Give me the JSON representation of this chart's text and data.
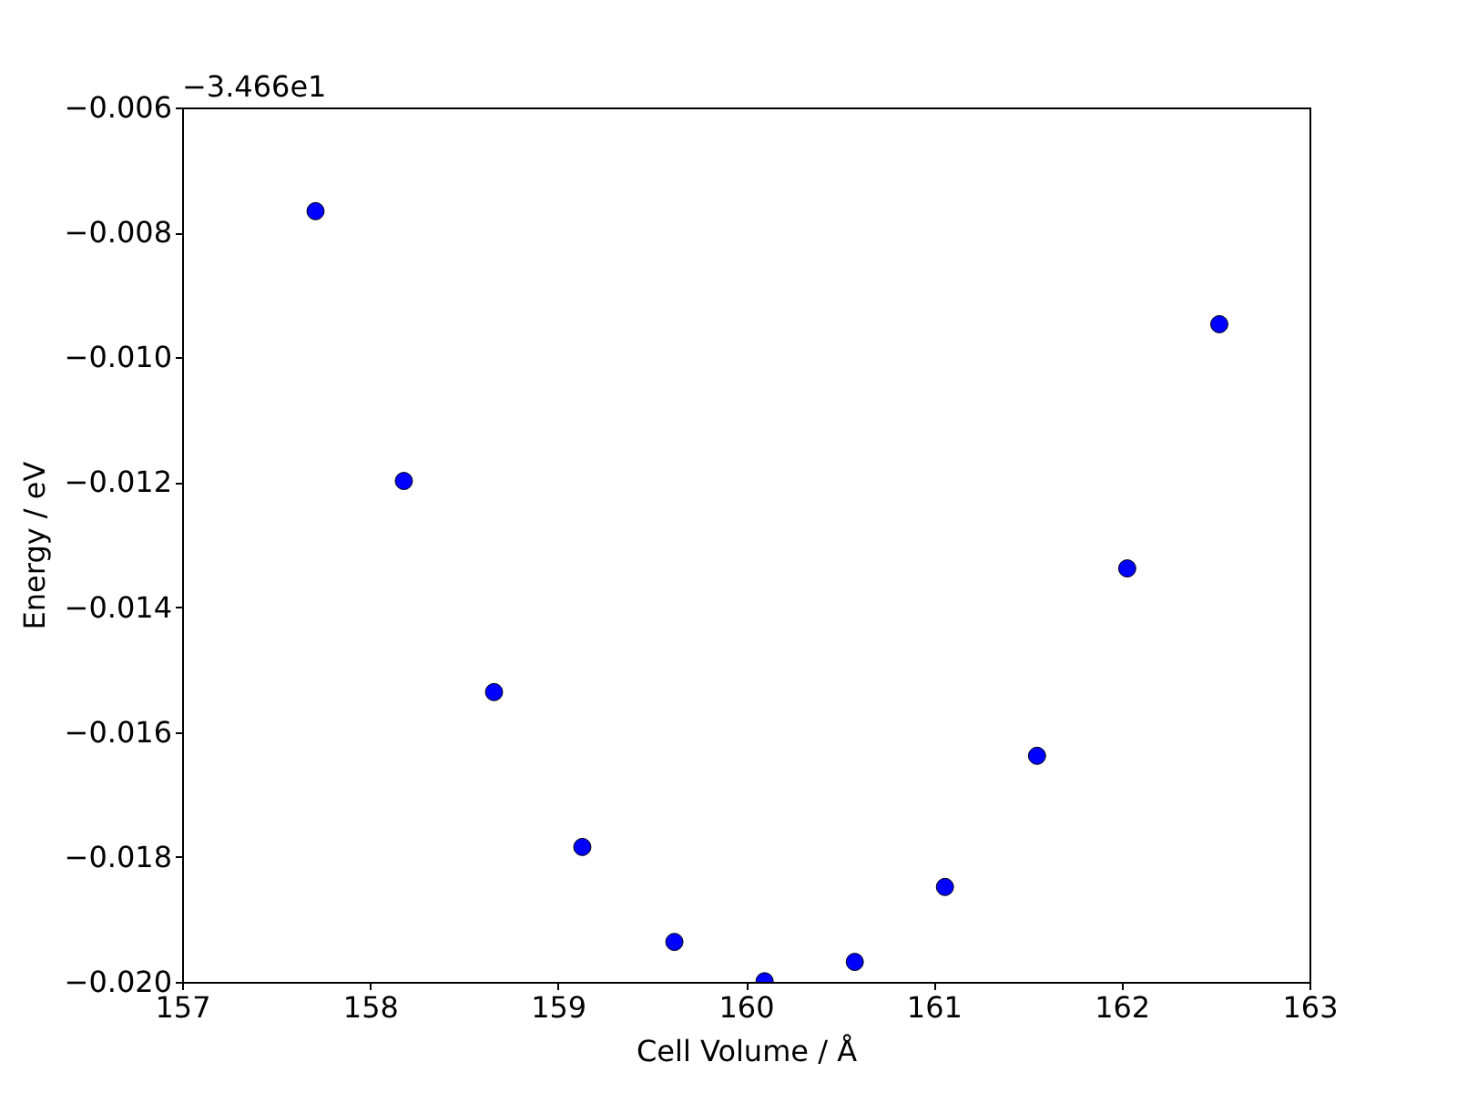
{
  "chart_data": {
    "type": "scatter",
    "xlabel": "Cell Volume / Å",
    "ylabel": "Energy / eV",
    "annotations": [
      "−3.466e1"
    ],
    "x": [
      157.71,
      158.18,
      158.66,
      159.13,
      159.62,
      160.1,
      160.58,
      161.06,
      161.55,
      162.03,
      162.52
    ],
    "series": [
      {
        "color": "#0000ff",
        "values": [
          -0.00766,
          -0.01198,
          -0.01536,
          -0.01784,
          -0.01936,
          -0.01999,
          -0.01968,
          -0.01848,
          -0.01638,
          -0.01338,
          -0.00947
        ]
      }
    ],
    "xlim": [
      157,
      163
    ],
    "ylim": [
      -0.02,
      -0.006
    ],
    "xticks": [
      157,
      158,
      159,
      160,
      161,
      162,
      163
    ],
    "yticks": [
      {
        "value": -0.02,
        "label": "−0.020"
      },
      -0.018,
      -0.016,
      -0.014,
      -0.012,
      {
        "value": -0.01,
        "label": "−0.010"
      },
      -0.008,
      -0.006
    ],
    "grid": false,
    "marker": "circle"
  }
}
